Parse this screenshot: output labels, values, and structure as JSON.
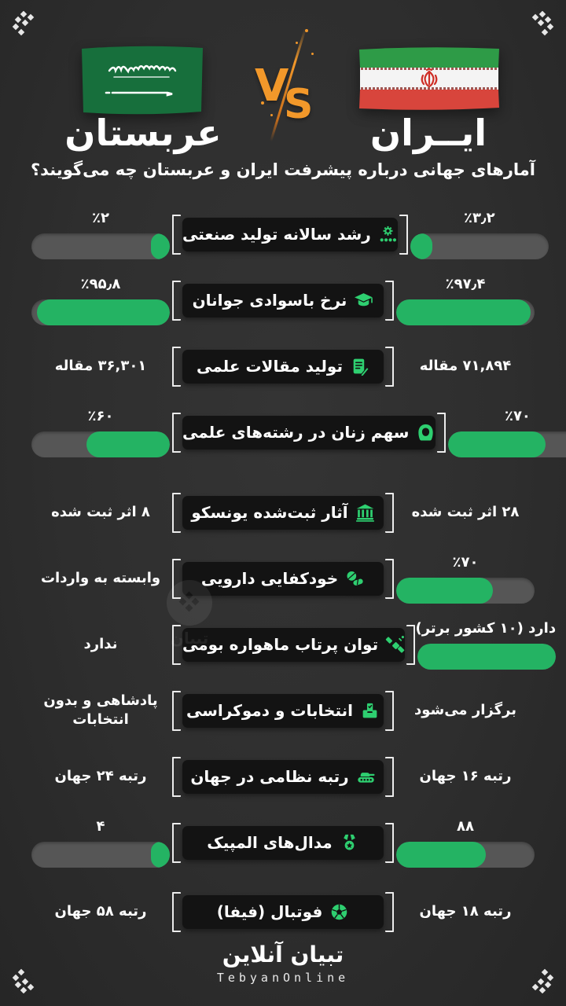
{
  "colors": {
    "background": "#2e2e2e",
    "bar_fill_green": "#24b363",
    "bar_track_gray": "#565656",
    "icon_green": "#2ecf70",
    "pill_black": "#131313",
    "vs_orange": "#f2982a",
    "saudi_flag_green": "#176f3c",
    "iran_flag_green": "#2e9b47",
    "iran_flag_red": "#d8453c"
  },
  "header": {
    "left_country": "عربستان",
    "right_country": "ایــران",
    "vs_v": "V",
    "vs_s": "S",
    "subtitle": "آمارهای جهانی درباره پیشرفت ایران و عربستان چه می‌گویند؟"
  },
  "rows": [
    {
      "label": "رشد سالانه تولید صنعتی",
      "icon": "industrial-growth-icon",
      "iran": {
        "value": "٪۳٫۲",
        "bar": 16
      },
      "saudi": {
        "value": "٪۲",
        "bar": 8
      }
    },
    {
      "label": "نرخ باسوادی جوانان",
      "icon": "graduation-cap-icon",
      "iran": {
        "value": "٪۹۷٫۴",
        "bar": 97.4
      },
      "saudi": {
        "value": "٪۹۵٫۸",
        "bar": 95.8
      }
    },
    {
      "label": "تولید مقالات علمی",
      "icon": "document-pen-icon",
      "iran": {
        "value": "۷۱,۸۹۴ مقاله"
      },
      "saudi": {
        "value": "۳۶,۳۰۱ مقاله"
      }
    },
    {
      "label": "سهم زنان در رشته‌های علمی",
      "icon": "woman-hijab-icon",
      "iran": {
        "value": "٪۷۰",
        "bar": 70
      },
      "saudi": {
        "value": "٪۶۰",
        "bar": 60
      }
    },
    {
      "label": "آثار ثبت‌شده یونسکو",
      "icon": "museum-icon",
      "iran": {
        "value": "۲۸ اثر ثبت شده"
      },
      "saudi": {
        "value": "۸ اثر ثبت شده"
      }
    },
    {
      "label": "خودکفایی دارویی",
      "icon": "pills-icon",
      "iran": {
        "value": "٪۷۰",
        "bar": 70
      },
      "saudi": {
        "value": "وابسته به واردات"
      }
    },
    {
      "label": "توان پرتاب ماهواره بومی",
      "icon": "satellite-icon",
      "iran": {
        "value": "دارد (۱۰ کشور برتر)",
        "bar": 100
      },
      "saudi": {
        "value": "ندارد"
      }
    },
    {
      "label": "انتخابات و دموکراسی",
      "icon": "ballot-box-icon",
      "iran": {
        "value": "برگزار می‌شود"
      },
      "saudi": {
        "value": "پادشاهی و بدون انتخابات"
      }
    },
    {
      "label": "رتبه نظامی در جهان",
      "icon": "tank-icon",
      "iran": {
        "value": "رتبه ۱۶ جهان"
      },
      "saudi": {
        "value": "رتبه ۲۴ جهان"
      }
    },
    {
      "label": "مدال‌های المپیک",
      "icon": "medal-icon",
      "iran": {
        "value": "۸۸",
        "bar": 65
      },
      "saudi": {
        "value": "۴",
        "bar": 8
      }
    },
    {
      "label": "فوتبال (فیفا)",
      "icon": "soccer-ball-icon",
      "iran": {
        "value": "رتبه ۱۸ جهان"
      },
      "saudi": {
        "value": "رتبه ۵۸ جهان"
      }
    }
  ],
  "footer": {
    "logo_fa": "تبیان آنلاین",
    "logo_en": "TebyanOnline"
  },
  "watermark": {
    "text": "تبیان"
  },
  "chart_data": {
    "type": "bar",
    "title": "آمارهای جهانی درباره پیشرفت ایران و عربستان چه می‌گویند؟",
    "categories": [
      "رشد سالانه تولید صنعتی",
      "نرخ باسوادی جوانان",
      "تولید مقالات علمی",
      "سهم زنان در رشته‌های علمی",
      "آثار ثبت‌شده یونسکو",
      "خودکفایی دارویی",
      "توان پرتاب ماهواره بومی",
      "انتخابات و دموکراسی",
      "رتبه نظامی در جهان",
      "مدال‌های المپیک",
      "فوتبال (فیفا)"
    ],
    "series": [
      {
        "name": "ایران",
        "values": [
          "٪۳٫۲",
          "٪۹۷٫۴",
          "۷۱,۸۹۴ مقاله",
          "٪۷۰",
          "۲۸ اثر ثبت شده",
          "٪۷۰",
          "دارد (۱۰ کشور برتر)",
          "برگزار می‌شود",
          "رتبه ۱۶ جهان",
          "۸۸",
          "رتبه ۱۸ جهان"
        ],
        "bar_percent": [
          16,
          97.4,
          null,
          70,
          null,
          70,
          100,
          null,
          null,
          65,
          null
        ]
      },
      {
        "name": "عربستان",
        "values": [
          "٪۲",
          "٪۹۵٫۸",
          "۳۶,۳۰۱ مقاله",
          "٪۶۰",
          "۸ اثر ثبت شده",
          "وابسته به واردات",
          "ندارد",
          "پادشاهی و بدون انتخابات",
          "رتبه ۲۴ جهان",
          "۴",
          "رتبه ۵۸ جهان"
        ],
        "bar_percent": [
          8,
          95.8,
          null,
          60,
          null,
          null,
          null,
          null,
          null,
          8,
          null
        ]
      }
    ],
    "legend_position": "top",
    "grid": false
  }
}
